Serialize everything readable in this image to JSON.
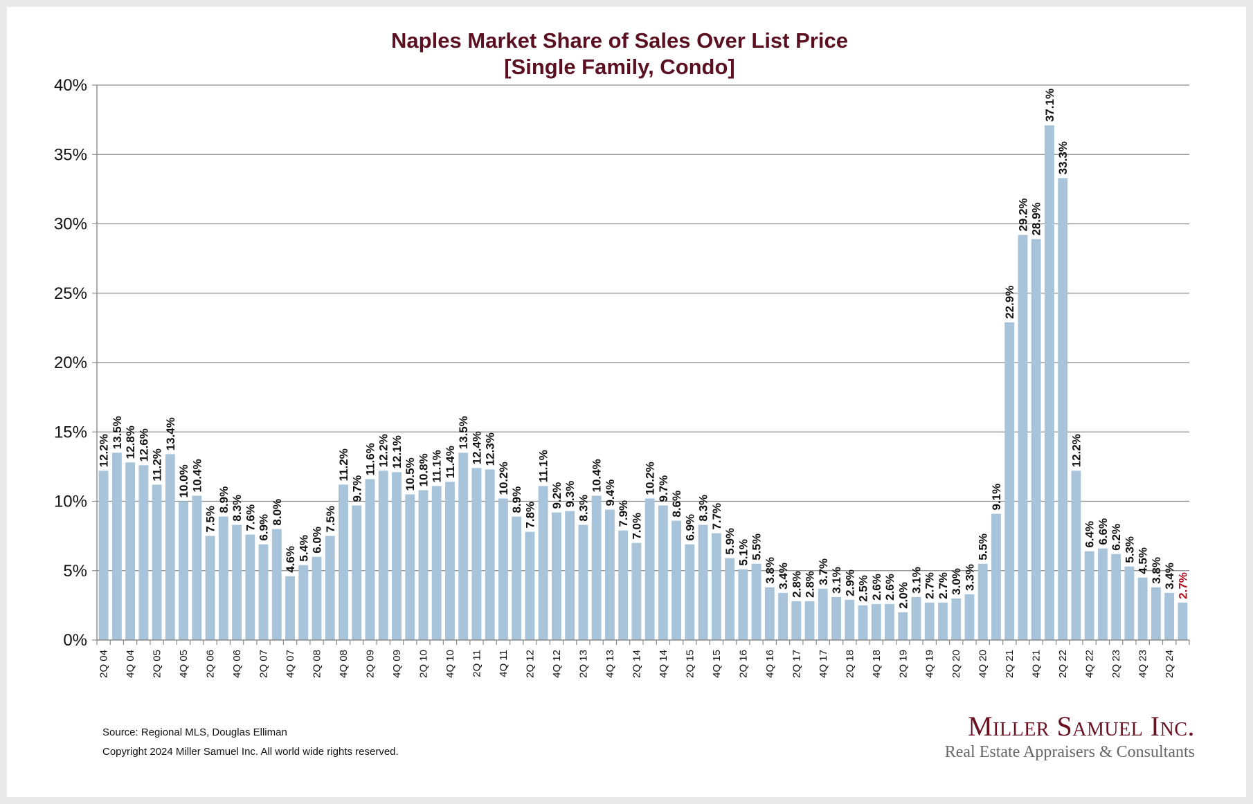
{
  "chart_data": {
    "type": "bar",
    "title": [
      "Naples Market Share of Sales Over List Price",
      "[Single Family, Condo]"
    ],
    "xlabel": "",
    "ylabel": "",
    "ylim": [
      0,
      40
    ],
    "yticks": [
      0,
      5,
      10,
      15,
      20,
      25,
      30,
      35,
      40
    ],
    "ytick_suffix": "%",
    "grid": true,
    "bar_color": "#a8c4da",
    "highlight_label_color": "#b01020",
    "highlight_last": true,
    "categories": [
      "2Q 04",
      "3Q 04",
      "4Q 04",
      "1Q 05",
      "2Q 05",
      "3Q 05",
      "4Q 05",
      "1Q 06",
      "2Q 06",
      "3Q 06",
      "4Q 06",
      "1Q 07",
      "2Q 07",
      "3Q 07",
      "4Q 07",
      "1Q 08",
      "2Q 08",
      "3Q 08",
      "4Q 08",
      "1Q 09",
      "2Q 09",
      "3Q 09",
      "4Q 09",
      "1Q 10",
      "2Q 10",
      "3Q 10",
      "4Q 10",
      "1Q 11",
      "2Q 11",
      "3Q 11",
      "4Q 11",
      "1Q 12",
      "2Q 12",
      "3Q 12",
      "4Q 12",
      "1Q 13",
      "2Q 13",
      "3Q 13",
      "4Q 13",
      "1Q 14",
      "2Q 14",
      "3Q 14",
      "4Q 14",
      "1Q 15",
      "2Q 15",
      "3Q 15",
      "4Q 15",
      "1Q 16",
      "2Q 16",
      "3Q 16",
      "4Q 16",
      "1Q 17",
      "2Q 17",
      "3Q 17",
      "4Q 17",
      "1Q 18",
      "2Q 18",
      "3Q 18",
      "4Q 18",
      "1Q 19",
      "2Q 19",
      "3Q 19",
      "4Q 19",
      "1Q 20",
      "2Q 20",
      "3Q 20",
      "4Q 20",
      "1Q 21",
      "2Q 21",
      "3Q 21",
      "4Q 21",
      "1Q 22",
      "2Q 22",
      "3Q 22",
      "4Q 22",
      "1Q 23",
      "2Q 23",
      "3Q 23",
      "4Q 23",
      "1Q 24",
      "2Q 24",
      "3Q 24"
    ],
    "shown_tick_every": 2,
    "values": [
      12.2,
      13.5,
      12.8,
      12.6,
      11.2,
      13.4,
      10.0,
      10.4,
      7.5,
      8.9,
      8.3,
      7.6,
      6.9,
      8.0,
      4.6,
      5.4,
      6.0,
      7.5,
      11.2,
      9.7,
      11.6,
      12.2,
      12.1,
      10.5,
      10.8,
      11.1,
      11.4,
      13.5,
      12.4,
      12.3,
      10.2,
      8.9,
      7.8,
      11.1,
      9.2,
      9.3,
      8.3,
      10.4,
      9.4,
      7.9,
      7.0,
      10.2,
      9.7,
      8.6,
      6.9,
      8.3,
      7.7,
      5.9,
      5.1,
      5.5,
      3.8,
      3.4,
      2.8,
      2.8,
      3.7,
      3.1,
      2.9,
      2.5,
      2.6,
      2.6,
      2.0,
      3.1,
      2.7,
      2.7,
      3.0,
      3.3,
      5.5,
      9.1,
      22.9,
      29.2,
      28.9,
      37.1,
      33.3,
      12.2,
      6.4,
      6.6,
      6.2,
      5.3,
      4.5,
      3.8,
      3.4,
      2.7
    ],
    "data_labels": true,
    "data_label_format": "{v:.1f}%"
  },
  "footer": {
    "source": "Source: Regional MLS, Douglas Elliman",
    "copyright": "Copyright 2024 Miller Samuel Inc.  All world wide rights reserved."
  },
  "logo": {
    "name": "Miller Samuel Inc.",
    "tagline": "Real Estate Appraisers & Consultants"
  }
}
